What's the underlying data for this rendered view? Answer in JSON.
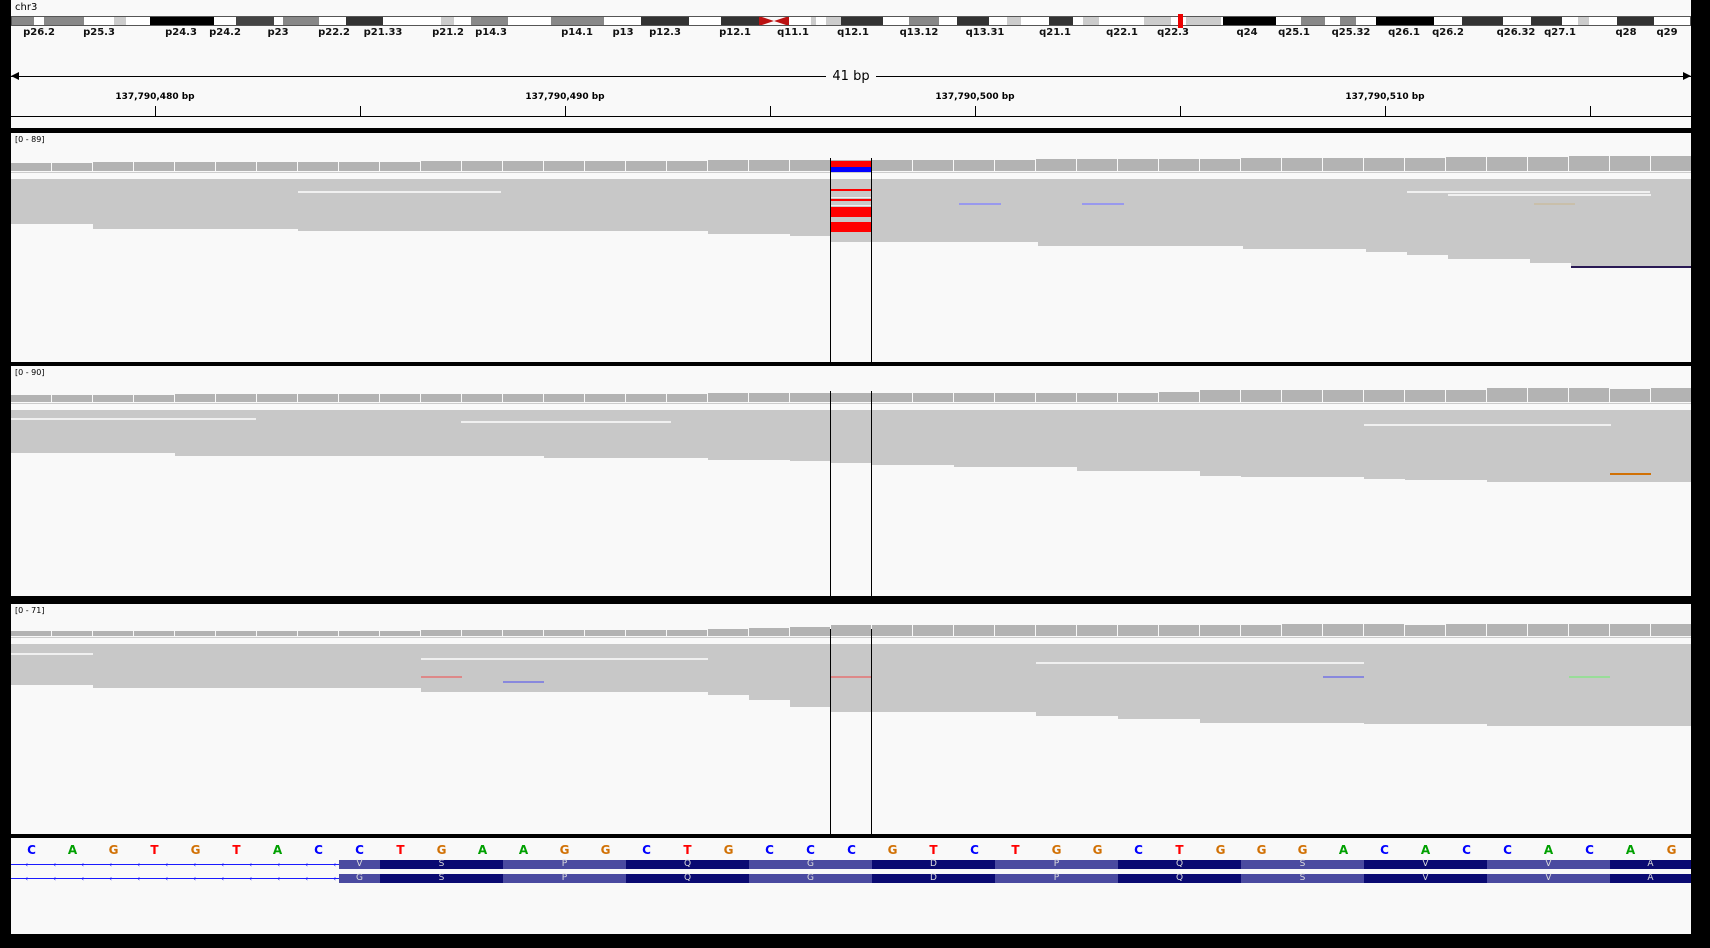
{
  "chromosome": "chr3",
  "cytobands": [
    "p26.2",
    "p25.3",
    "p24.3",
    "p24.2",
    "p23",
    "p22.2",
    "p21.33",
    "p21.2",
    "p14.3",
    "p14.1",
    "p13",
    "p12.3",
    "p12.1",
    "q11.1",
    "q12.1",
    "q13.12",
    "q13.31",
    "q21.1",
    "q22.1",
    "q22.3",
    "q24",
    "q25.1",
    "q25.32",
    "q26.1",
    "q26.2",
    "q26.32",
    "q27.1",
    "q28",
    "q29"
  ],
  "ruler": {
    "span": "41 bp",
    "positions": [
      "137,790,480 bp",
      "137,790,490 bp",
      "137,790,500 bp",
      "137,790,510 bp"
    ]
  },
  "tracks": [
    {
      "range": "[0 - 89]"
    },
    {
      "range": "[0 - 90]"
    },
    {
      "range": "[0 - 71]"
    }
  ],
  "sequence": [
    "C",
    "A",
    "G",
    "T",
    "G",
    "T",
    "A",
    "C",
    "C",
    "T",
    "G",
    "A",
    "A",
    "G",
    "G",
    "C",
    "T",
    "G",
    "C",
    "C",
    "C",
    "G",
    "T",
    "C",
    "T",
    "G",
    "G",
    "C",
    "T",
    "G",
    "G",
    "G",
    "A",
    "C",
    "A",
    "C",
    "C",
    "A",
    "C",
    "A",
    "G"
  ],
  "amino_acids": [
    "V",
    "S",
    "P",
    "Q",
    "G",
    "D",
    "P",
    "Q",
    "S",
    "V",
    "V",
    "A"
  ],
  "amino_acids_2": [
    "G",
    "S",
    "P",
    "Q",
    "G",
    "D",
    "P",
    "Q",
    "S",
    "V",
    "V",
    "A"
  ],
  "colors": {
    "A": "#00a000",
    "C": "#0000ff",
    "G": "#d17105",
    "T": "#ff0000"
  }
}
